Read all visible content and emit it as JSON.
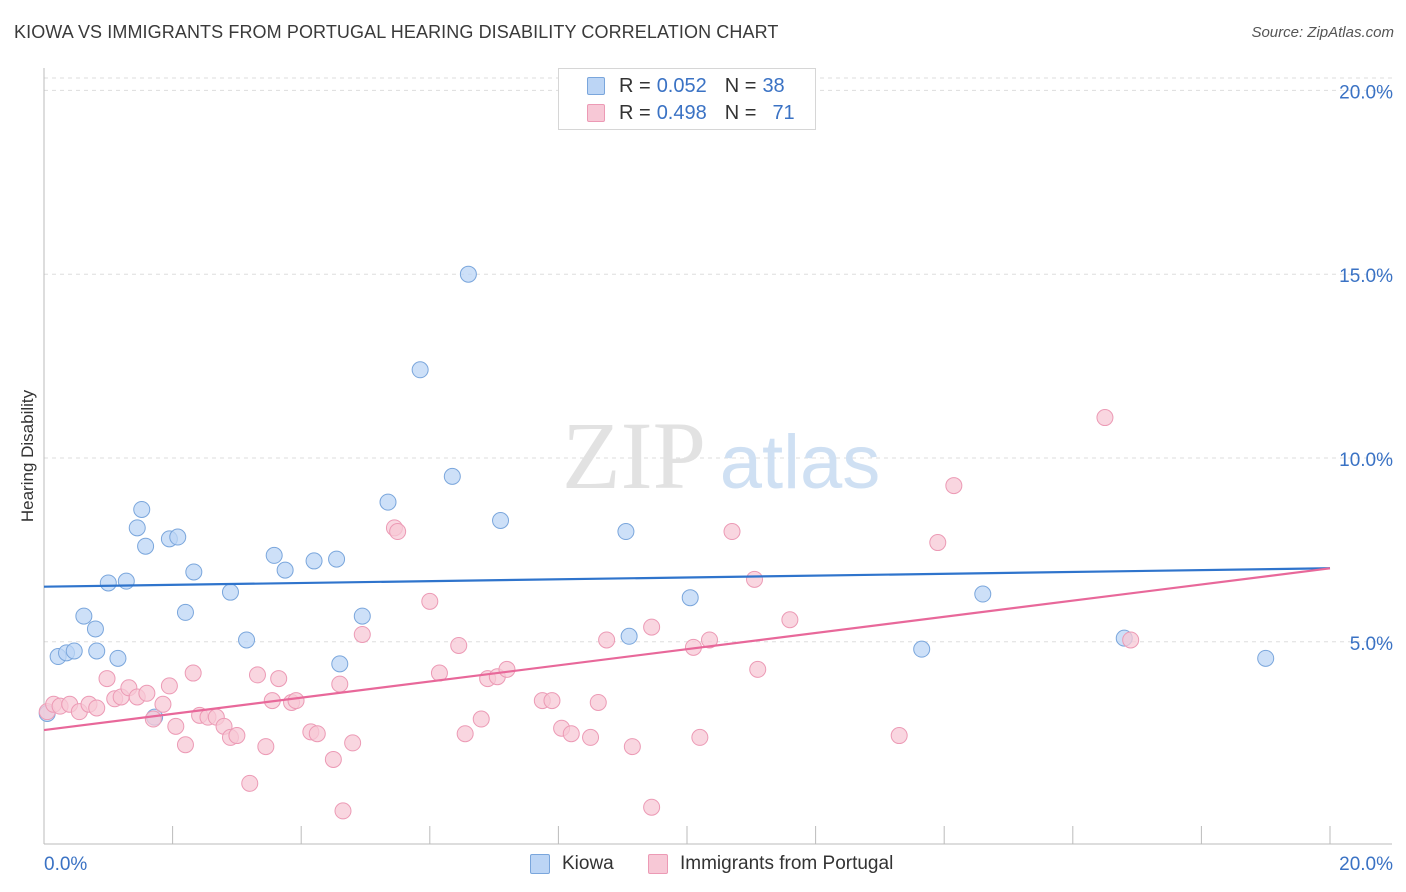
{
  "header": {
    "title": "KIOWA VS IMMIGRANTS FROM PORTUGAL HEARING DISABILITY CORRELATION CHART",
    "source": "Source: ZipAtlas.com"
  },
  "legend": {
    "r_label": "R =",
    "n_label": "N =",
    "items": [
      {
        "r": "0.052",
        "n": "38"
      },
      {
        "r": "0.498",
        "n": "71"
      }
    ]
  },
  "watermark": {
    "zip": "ZIP",
    "atlas": "atlas"
  },
  "chart_data": {
    "type": "scatter",
    "ylabel": "Hearing Disability",
    "xlim": [
      0,
      20
    ],
    "ylim": [
      -0.5,
      20.5
    ],
    "x_tick_labels": [
      "0.0%",
      "20.0%"
    ],
    "y_ticks": [
      5,
      10,
      15,
      20
    ],
    "y_tick_labels": [
      "5.0%",
      "10.0%",
      "15.0%",
      "20.0%"
    ],
    "grid": true,
    "legend_position": "top-center",
    "series": [
      {
        "name": "Kiowa",
        "fill": "#bcd5f5",
        "stroke": "#7aa6dc",
        "line_color": "#2f74cc",
        "trend": {
          "x": [
            0,
            20
          ],
          "y": [
            6.5,
            7.0
          ]
        },
        "points": [
          [
            0.05,
            3.05
          ],
          [
            0.22,
            4.6
          ],
          [
            0.35,
            4.7
          ],
          [
            0.47,
            4.75
          ],
          [
            0.62,
            5.7
          ],
          [
            0.82,
            4.75
          ],
          [
            0.8,
            5.35
          ],
          [
            1.0,
            6.6
          ],
          [
            1.15,
            4.55
          ],
          [
            1.28,
            6.65
          ],
          [
            1.45,
            8.1
          ],
          [
            1.52,
            8.6
          ],
          [
            1.58,
            7.6
          ],
          [
            1.72,
            2.95
          ],
          [
            1.95,
            7.8
          ],
          [
            2.08,
            7.85
          ],
          [
            2.2,
            5.8
          ],
          [
            2.33,
            6.9
          ],
          [
            2.9,
            6.35
          ],
          [
            3.15,
            5.05
          ],
          [
            3.58,
            7.35
          ],
          [
            3.75,
            6.95
          ],
          [
            4.2,
            7.2
          ],
          [
            4.55,
            7.25
          ],
          [
            4.6,
            4.4
          ],
          [
            4.95,
            5.7
          ],
          [
            5.35,
            8.8
          ],
          [
            5.85,
            12.4
          ],
          [
            6.35,
            9.5
          ],
          [
            6.6,
            15.0
          ],
          [
            7.1,
            8.3
          ],
          [
            9.05,
            8.0
          ],
          [
            9.1,
            5.15
          ],
          [
            10.05,
            6.2
          ],
          [
            13.65,
            4.8
          ],
          [
            14.6,
            6.3
          ],
          [
            16.8,
            5.1
          ],
          [
            19.0,
            4.55
          ]
        ]
      },
      {
        "name": "Immigrants from Portugal",
        "fill": "#f7c8d6",
        "stroke": "#ec9ab5",
        "line_color": "#e8689a",
        "trend": {
          "x": [
            0,
            20
          ],
          "y": [
            2.6,
            7.0
          ]
        },
        "points": [
          [
            0.05,
            3.1
          ],
          [
            0.15,
            3.3
          ],
          [
            0.25,
            3.25
          ],
          [
            0.4,
            3.3
          ],
          [
            0.55,
            3.1
          ],
          [
            0.7,
            3.3
          ],
          [
            0.82,
            3.2
          ],
          [
            0.98,
            4.0
          ],
          [
            1.1,
            3.45
          ],
          [
            1.2,
            3.5
          ],
          [
            1.32,
            3.75
          ],
          [
            1.45,
            3.5
          ],
          [
            1.6,
            3.6
          ],
          [
            1.7,
            2.9
          ],
          [
            1.85,
            3.3
          ],
          [
            1.95,
            3.8
          ],
          [
            2.05,
            2.7
          ],
          [
            2.2,
            2.2
          ],
          [
            2.32,
            4.15
          ],
          [
            2.42,
            3.0
          ],
          [
            2.55,
            2.95
          ],
          [
            2.68,
            2.95
          ],
          [
            2.8,
            2.7
          ],
          [
            2.9,
            2.4
          ],
          [
            3.0,
            2.45
          ],
          [
            3.2,
            1.15
          ],
          [
            3.32,
            4.1
          ],
          [
            3.45,
            2.15
          ],
          [
            3.55,
            3.4
          ],
          [
            3.65,
            4.0
          ],
          [
            3.85,
            3.35
          ],
          [
            3.92,
            3.4
          ],
          [
            4.15,
            2.55
          ],
          [
            4.25,
            2.5
          ],
          [
            4.5,
            1.8
          ],
          [
            4.6,
            3.85
          ],
          [
            4.65,
            0.4
          ],
          [
            4.8,
            2.25
          ],
          [
            4.95,
            5.2
          ],
          [
            5.45,
            8.1
          ],
          [
            5.5,
            8.0
          ],
          [
            6.0,
            6.1
          ],
          [
            6.15,
            4.15
          ],
          [
            6.45,
            4.9
          ],
          [
            6.55,
            2.5
          ],
          [
            6.8,
            2.9
          ],
          [
            6.9,
            4.0
          ],
          [
            7.05,
            4.05
          ],
          [
            7.2,
            4.25
          ],
          [
            7.75,
            3.4
          ],
          [
            7.9,
            3.4
          ],
          [
            8.05,
            2.65
          ],
          [
            8.2,
            2.5
          ],
          [
            8.5,
            2.4
          ],
          [
            8.62,
            3.35
          ],
          [
            8.75,
            5.05
          ],
          [
            9.15,
            2.15
          ],
          [
            9.45,
            5.4
          ],
          [
            9.45,
            0.5
          ],
          [
            10.1,
            4.85
          ],
          [
            10.2,
            2.4
          ],
          [
            10.35,
            5.05
          ],
          [
            10.7,
            8.0
          ],
          [
            11.05,
            6.7
          ],
          [
            11.1,
            4.25
          ],
          [
            11.6,
            5.6
          ],
          [
            13.3,
            2.45
          ],
          [
            13.9,
            7.7
          ],
          [
            14.15,
            9.25
          ],
          [
            16.5,
            11.1
          ],
          [
            16.9,
            5.05
          ]
        ]
      }
    ]
  }
}
